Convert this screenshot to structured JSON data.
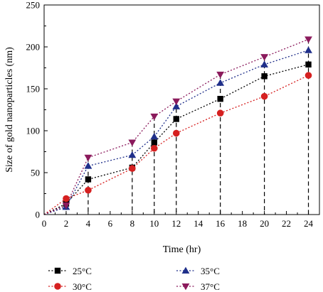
{
  "chart_data": {
    "type": "line",
    "title": "",
    "xlabel": "Time (hr)",
    "ylabel": "Size of gold nanoparticles (nm)",
    "xlim": [
      0,
      25
    ],
    "ylim": [
      0,
      250
    ],
    "xticks": [
      0,
      2,
      4,
      6,
      8,
      10,
      12,
      14,
      16,
      18,
      20,
      22,
      24
    ],
    "yticks": [
      0,
      50,
      100,
      150,
      200,
      250
    ],
    "grid": false,
    "legend": "bottom",
    "drop_lines": true,
    "x": [
      0,
      2,
      4,
      8,
      10,
      12,
      16,
      20,
      24
    ],
    "series": [
      {
        "name": "25°C",
        "marker": "square",
        "color": "#000000",
        "values": [
          0,
          13,
          42,
          56,
          86,
          114,
          138,
          165,
          179
        ]
      },
      {
        "name": "30°C",
        "marker": "circle",
        "color": "#d62020",
        "values": [
          0,
          19,
          29,
          55,
          79,
          97,
          121,
          141,
          166
        ]
      },
      {
        "name": "35°C",
        "marker": "triangle-up",
        "color": "#1f2f8a",
        "values": [
          0,
          9,
          58,
          71,
          93,
          129,
          157,
          179,
          196
        ]
      },
      {
        "name": "37°C",
        "marker": "triangle-down",
        "color": "#8b1a5c",
        "values": [
          0,
          11,
          68,
          86,
          117,
          135,
          167,
          188,
          209
        ]
      }
    ]
  }
}
